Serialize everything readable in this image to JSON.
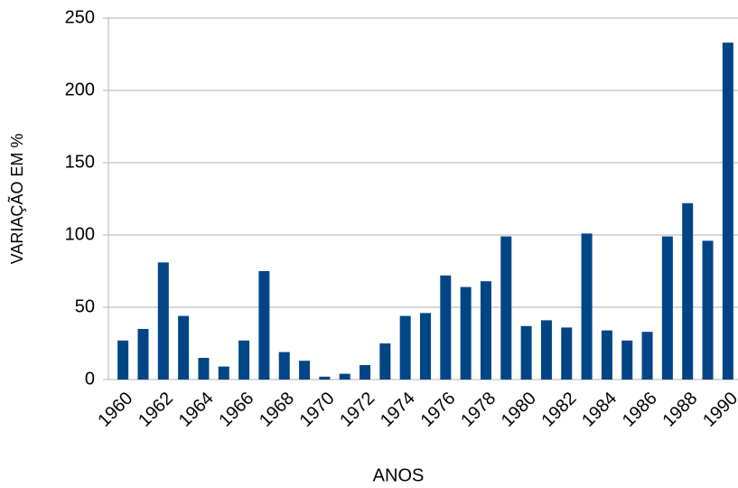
{
  "chart_data": {
    "type": "bar",
    "x_label": "ANOS",
    "y_label": "VARIAÇÃO EM %",
    "categories": [
      "1960",
      null,
      "1962",
      null,
      "1964",
      null,
      "1966",
      null,
      "1968",
      null,
      "1970",
      null,
      "1972",
      null,
      "1974",
      null,
      "1976",
      null,
      "1978",
      null,
      "1980",
      null,
      "1982",
      null,
      "1984",
      null,
      "1986",
      null,
      "1988",
      null,
      "1990"
    ],
    "values": [
      27,
      35,
      81,
      44,
      15,
      9,
      27,
      75,
      19,
      13,
      2,
      4,
      10,
      25,
      44,
      46,
      72,
      64,
      68,
      99,
      37,
      41,
      36,
      101,
      34,
      27,
      33,
      99,
      122,
      96,
      233
    ],
    "color": "#004586",
    "ylim": [
      0,
      250
    ],
    "yticks": [
      0,
      50,
      100,
      150,
      200,
      250
    ],
    "grid": true
  }
}
